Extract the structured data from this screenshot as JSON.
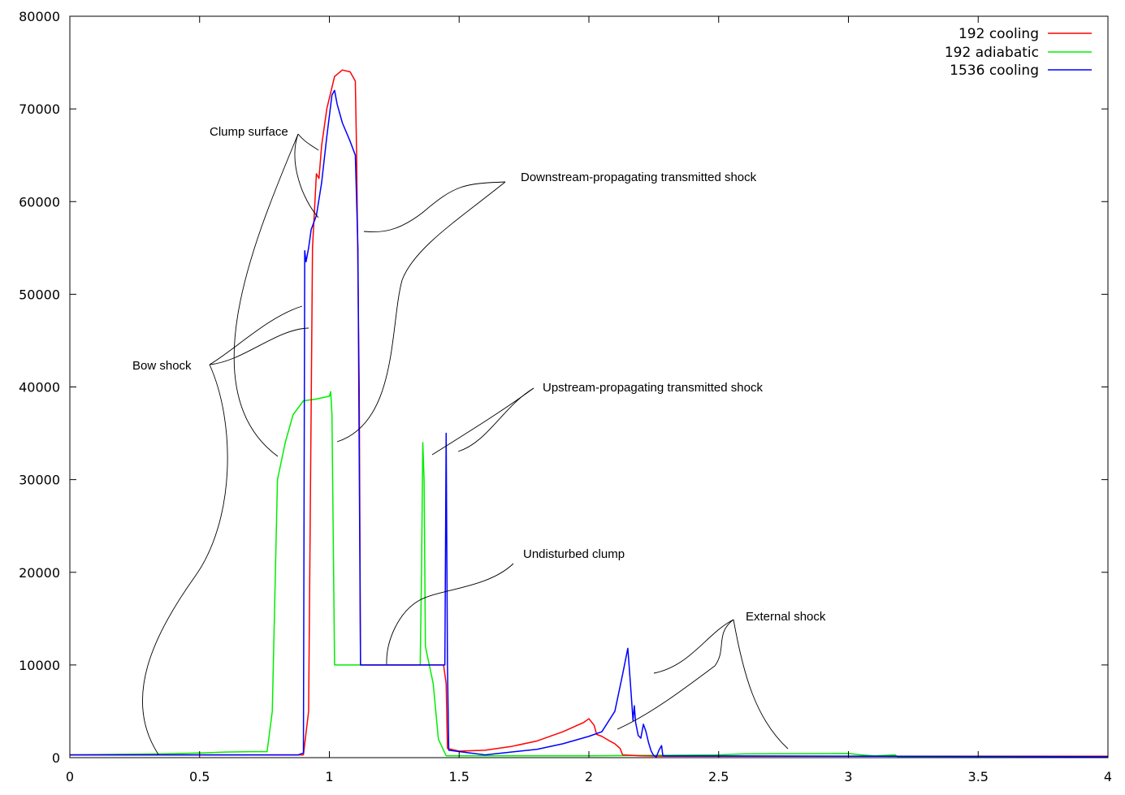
{
  "chart_data": {
    "type": "line",
    "title": "",
    "xlabel": "",
    "ylabel": "",
    "xlim": [
      0,
      4
    ],
    "ylim": [
      0,
      80000
    ],
    "grid": false,
    "legend_position": "top-right",
    "x_ticks": [
      0,
      0.5,
      1,
      1.5,
      2,
      2.5,
      3,
      3.5,
      4
    ],
    "x_tick_labels": [
      "0",
      "0.5",
      "1",
      "1.5",
      "2",
      "2.5",
      "3",
      "3.5",
      "4"
    ],
    "y_ticks": [
      0,
      10000,
      20000,
      30000,
      40000,
      50000,
      60000,
      70000,
      80000
    ],
    "y_tick_labels": [
      "0",
      "10000",
      "20000",
      "30000",
      "40000",
      "50000",
      "60000",
      "70000",
      "80000"
    ],
    "series": [
      {
        "name": "192 cooling",
        "color": "#ff0000",
        "points": [
          [
            0,
            300
          ],
          [
            0.9,
            300
          ],
          [
            0.92,
            5000
          ],
          [
            0.935,
            55000
          ],
          [
            0.95,
            63000
          ],
          [
            0.96,
            62500
          ],
          [
            0.97,
            66000
          ],
          [
            0.99,
            70000
          ],
          [
            1.02,
            73500
          ],
          [
            1.05,
            74200
          ],
          [
            1.08,
            74000
          ],
          [
            1.1,
            73000
          ],
          [
            1.105,
            65000
          ],
          [
            1.115,
            40000
          ],
          [
            1.12,
            10000
          ],
          [
            1.44,
            10000
          ],
          [
            1.45,
            8000
          ],
          [
            1.455,
            1000
          ],
          [
            1.5,
            700
          ],
          [
            1.6,
            800
          ],
          [
            1.7,
            1200
          ],
          [
            1.8,
            1800
          ],
          [
            1.9,
            2800
          ],
          [
            1.98,
            3800
          ],
          [
            2.0,
            4200
          ],
          [
            2.02,
            3500
          ],
          [
            2.03,
            2500
          ],
          [
            2.05,
            2300
          ],
          [
            2.08,
            1800
          ],
          [
            2.1,
            1500
          ],
          [
            2.12,
            1000
          ],
          [
            2.13,
            300
          ],
          [
            2.2,
            200
          ],
          [
            2.3,
            150
          ],
          [
            4,
            150
          ]
        ]
      },
      {
        "name": "192 adiabatic",
        "color": "#00ee00",
        "points": [
          [
            0,
            300
          ],
          [
            0.35,
            400
          ],
          [
            0.5,
            500
          ],
          [
            0.6,
            600
          ],
          [
            0.7,
            650
          ],
          [
            0.76,
            650
          ],
          [
            0.78,
            5000
          ],
          [
            0.8,
            30000
          ],
          [
            0.83,
            34000
          ],
          [
            0.86,
            37000
          ],
          [
            0.9,
            38500
          ],
          [
            0.95,
            38700
          ],
          [
            1.0,
            39000
          ],
          [
            1.005,
            39500
          ],
          [
            1.01,
            37000
          ],
          [
            1.02,
            10000
          ],
          [
            1.35,
            10000
          ],
          [
            1.355,
            20000
          ],
          [
            1.36,
            34000
          ],
          [
            1.365,
            30000
          ],
          [
            1.37,
            12000
          ],
          [
            1.4,
            8000
          ],
          [
            1.42,
            2000
          ],
          [
            1.45,
            200
          ],
          [
            1.6,
            200
          ],
          [
            2.0,
            200
          ],
          [
            2.5,
            300
          ],
          [
            2.6,
            400
          ],
          [
            3.0,
            450
          ],
          [
            3.05,
            300
          ],
          [
            3.1,
            200
          ],
          [
            3.18,
            300
          ],
          [
            3.19,
            100
          ],
          [
            4,
            100
          ]
        ]
      },
      {
        "name": "1536 cooling",
        "color": "#0000ff",
        "points": [
          [
            0,
            300
          ],
          [
            0.88,
            300
          ],
          [
            0.9,
            500
          ],
          [
            0.905,
            54700
          ],
          [
            0.91,
            53500
          ],
          [
            0.92,
            55000
          ],
          [
            0.93,
            57000
          ],
          [
            0.95,
            58500
          ],
          [
            0.97,
            62000
          ],
          [
            0.99,
            67000
          ],
          [
            1.01,
            71500
          ],
          [
            1.02,
            72000
          ],
          [
            1.03,
            70500
          ],
          [
            1.05,
            68500
          ],
          [
            1.08,
            66500
          ],
          [
            1.1,
            65000
          ],
          [
            1.11,
            55000
          ],
          [
            1.12,
            10000
          ],
          [
            1.445,
            10000
          ],
          [
            1.45,
            35000
          ],
          [
            1.455,
            10000
          ],
          [
            1.46,
            800
          ],
          [
            1.6,
            300
          ],
          [
            1.8,
            900
          ],
          [
            1.9,
            1500
          ],
          [
            2.0,
            2300
          ],
          [
            2.05,
            2800
          ],
          [
            2.1,
            5000
          ],
          [
            2.13,
            9000
          ],
          [
            2.15,
            11800
          ],
          [
            2.16,
            8000
          ],
          [
            2.17,
            4000
          ],
          [
            2.175,
            5600
          ],
          [
            2.18,
            3800
          ],
          [
            2.19,
            2400
          ],
          [
            2.2,
            2100
          ],
          [
            2.21,
            3600
          ],
          [
            2.22,
            2800
          ],
          [
            2.23,
            1600
          ],
          [
            2.24,
            700
          ],
          [
            2.25,
            200
          ],
          [
            2.26,
            100
          ],
          [
            2.27,
            800
          ],
          [
            2.28,
            1300
          ],
          [
            2.285,
            200
          ],
          [
            4,
            100
          ]
        ]
      }
    ],
    "annotations": [
      {
        "text": "Clump surface",
        "anchor_x": 0.86,
        "anchor_y": 67500
      },
      {
        "text": "Downstream-propagating transmitted shock",
        "anchor_x": 1.7,
        "anchor_y": 62000
      },
      {
        "text": "Bow shock",
        "anchor_x": 0.42,
        "anchor_y": 42500
      },
      {
        "text": "Upstream-propagating transmitted shock",
        "anchor_x": 1.78,
        "anchor_y": 39500
      },
      {
        "text": "Undisturbed clump",
        "anchor_x": 1.74,
        "anchor_y": 21500
      },
      {
        "text": "External shock",
        "anchor_x": 2.55,
        "anchor_y": 14800
      }
    ]
  }
}
